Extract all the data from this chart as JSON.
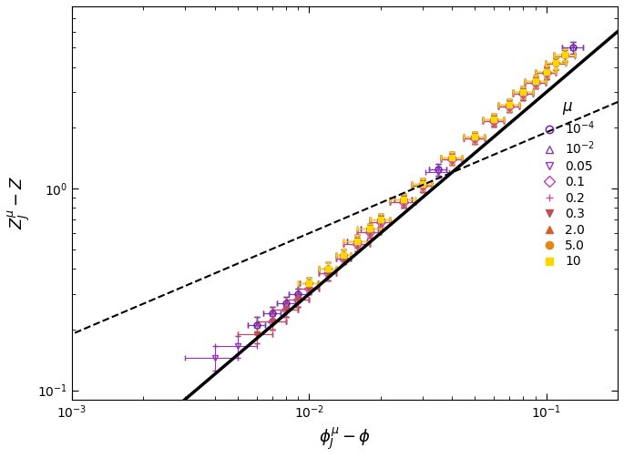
{
  "xlabel": "$\\phi_J^{\\mu} - \\phi$",
  "ylabel": "$Z_J^{\\mu} - Z$",
  "xlim": [
    0.001,
    0.2
  ],
  "ylim": [
    0.09,
    8.0
  ],
  "solid_line_x": [
    0.0008,
    0.2
  ],
  "solid_line_slope": 1.0,
  "solid_line_A": 30.0,
  "solid_line_lw": 2.5,
  "dashed_line_slope": 0.5,
  "dashed_line_A": 6.0,
  "dashed_line_lw": 1.5,
  "series": [
    {
      "label": "$10^{-4}$",
      "color": "#6A0DAD",
      "marker": "o",
      "filled": false,
      "x": [
        0.006,
        0.007,
        0.008,
        0.009,
        0.01,
        0.012,
        0.014,
        0.016,
        0.018,
        0.02,
        0.025,
        0.03,
        0.035,
        0.04,
        0.05,
        0.06,
        0.07,
        0.08,
        0.09,
        0.1,
        0.11,
        0.12,
        0.13
      ],
      "y": [
        0.21,
        0.24,
        0.27,
        0.3,
        0.34,
        0.4,
        0.47,
        0.55,
        0.63,
        0.7,
        0.88,
        1.05,
        1.24,
        1.42,
        1.8,
        2.2,
        2.6,
        3.0,
        3.4,
        3.8,
        4.2,
        4.6,
        5.0
      ],
      "xerr": [
        0.0005,
        0.0006,
        0.0007,
        0.0008,
        0.0009,
        0.001,
        0.001,
        0.0015,
        0.0015,
        0.002,
        0.002,
        0.003,
        0.003,
        0.004,
        0.005,
        0.006,
        0.007,
        0.008,
        0.009,
        0.01,
        0.011,
        0.012,
        0.013
      ],
      "yerr": [
        0.02,
        0.02,
        0.02,
        0.02,
        0.02,
        0.03,
        0.03,
        0.04,
        0.04,
        0.05,
        0.06,
        0.07,
        0.08,
        0.09,
        0.11,
        0.14,
        0.17,
        0.2,
        0.22,
        0.25,
        0.28,
        0.31,
        0.34
      ]
    },
    {
      "label": "$10^{-2}$",
      "color": "#7B3DAE",
      "marker": "^",
      "filled": false,
      "x": [
        0.006,
        0.007,
        0.008,
        0.009,
        0.01,
        0.012,
        0.014,
        0.016,
        0.018,
        0.02,
        0.025,
        0.03,
        0.035,
        0.04,
        0.05,
        0.06,
        0.07,
        0.08,
        0.09,
        0.1,
        0.11,
        0.12,
        0.13
      ],
      "y": [
        0.21,
        0.24,
        0.27,
        0.3,
        0.34,
        0.4,
        0.47,
        0.55,
        0.63,
        0.7,
        0.88,
        1.05,
        1.24,
        1.42,
        1.8,
        2.2,
        2.6,
        3.0,
        3.4,
        3.8,
        4.2,
        4.6,
        5.0
      ],
      "xerr": [
        0.0005,
        0.0006,
        0.0007,
        0.0008,
        0.0009,
        0.001,
        0.001,
        0.0015,
        0.0015,
        0.002,
        0.002,
        0.003,
        0.003,
        0.004,
        0.005,
        0.006,
        0.007,
        0.008,
        0.009,
        0.01,
        0.011,
        0.012,
        0.013
      ],
      "yerr": [
        0.02,
        0.02,
        0.02,
        0.02,
        0.02,
        0.03,
        0.03,
        0.04,
        0.04,
        0.05,
        0.06,
        0.07,
        0.08,
        0.09,
        0.11,
        0.14,
        0.17,
        0.2,
        0.22,
        0.25,
        0.28,
        0.31,
        0.34
      ]
    },
    {
      "label": "0.05",
      "color": "#9B30C0",
      "marker": "v",
      "filled": false,
      "x": [
        0.004,
        0.005,
        0.006,
        0.007,
        0.008,
        0.009,
        0.01,
        0.012,
        0.014,
        0.016,
        0.018,
        0.02,
        0.025,
        0.03,
        0.035,
        0.04,
        0.05,
        0.06,
        0.07,
        0.08,
        0.09,
        0.1
      ],
      "y": [
        0.145,
        0.165,
        0.19,
        0.22,
        0.25,
        0.28,
        0.32,
        0.38,
        0.45,
        0.53,
        0.61,
        0.68,
        0.86,
        1.03,
        1.21,
        1.4,
        1.77,
        2.16,
        2.56,
        2.95,
        3.35,
        3.74
      ],
      "xerr": [
        0.001,
        0.001,
        0.001,
        0.001,
        0.001,
        0.001,
        0.001,
        0.001,
        0.001,
        0.002,
        0.002,
        0.002,
        0.003,
        0.003,
        0.004,
        0.004,
        0.005,
        0.006,
        0.007,
        0.008,
        0.009,
        0.01
      ],
      "yerr": [
        0.02,
        0.02,
        0.02,
        0.02,
        0.02,
        0.02,
        0.02,
        0.03,
        0.03,
        0.04,
        0.04,
        0.05,
        0.06,
        0.07,
        0.08,
        0.09,
        0.11,
        0.14,
        0.17,
        0.2,
        0.22,
        0.25
      ]
    },
    {
      "label": "0.1",
      "color": "#C040B8",
      "marker": "D",
      "filled": false,
      "x": [
        0.007,
        0.008,
        0.009,
        0.01,
        0.012,
        0.014,
        0.016,
        0.018,
        0.02,
        0.025,
        0.03,
        0.04,
        0.05,
        0.06,
        0.07,
        0.08,
        0.09,
        0.1
      ],
      "y": [
        0.22,
        0.25,
        0.28,
        0.32,
        0.38,
        0.45,
        0.53,
        0.61,
        0.68,
        0.86,
        1.03,
        1.4,
        1.77,
        2.16,
        2.56,
        2.95,
        3.35,
        3.74
      ],
      "xerr": [
        0.001,
        0.001,
        0.001,
        0.001,
        0.001,
        0.001,
        0.002,
        0.002,
        0.002,
        0.003,
        0.003,
        0.004,
        0.005,
        0.006,
        0.007,
        0.008,
        0.009,
        0.01
      ],
      "yerr": [
        0.02,
        0.02,
        0.02,
        0.02,
        0.03,
        0.03,
        0.04,
        0.04,
        0.05,
        0.06,
        0.07,
        0.09,
        0.11,
        0.14,
        0.17,
        0.2,
        0.22,
        0.25
      ]
    },
    {
      "label": "0.2",
      "color": "#D05090",
      "marker": "+",
      "filled": false,
      "x": [
        0.007,
        0.008,
        0.009,
        0.01,
        0.012,
        0.014,
        0.016,
        0.018,
        0.02,
        0.025,
        0.03,
        0.04,
        0.05,
        0.06,
        0.07,
        0.08,
        0.09,
        0.1
      ],
      "y": [
        0.22,
        0.25,
        0.28,
        0.32,
        0.38,
        0.45,
        0.53,
        0.61,
        0.68,
        0.86,
        1.03,
        1.4,
        1.77,
        2.16,
        2.56,
        2.95,
        3.35,
        3.74
      ],
      "xerr": [
        0.001,
        0.001,
        0.001,
        0.001,
        0.001,
        0.001,
        0.002,
        0.002,
        0.002,
        0.003,
        0.003,
        0.004,
        0.005,
        0.006,
        0.007,
        0.008,
        0.009,
        0.01
      ],
      "yerr": [
        0.02,
        0.02,
        0.02,
        0.02,
        0.03,
        0.03,
        0.04,
        0.04,
        0.05,
        0.06,
        0.07,
        0.09,
        0.11,
        0.14,
        0.17,
        0.2,
        0.22,
        0.25
      ]
    },
    {
      "label": "0.3",
      "color": "#C05050",
      "marker": "v",
      "filled": true,
      "x": [
        0.006,
        0.007,
        0.008,
        0.009,
        0.01,
        0.012,
        0.014,
        0.016,
        0.018,
        0.02,
        0.025,
        0.03,
        0.04,
        0.05,
        0.06,
        0.07,
        0.08,
        0.09,
        0.1,
        0.11,
        0.12
      ],
      "y": [
        0.19,
        0.22,
        0.25,
        0.28,
        0.32,
        0.38,
        0.45,
        0.53,
        0.61,
        0.68,
        0.86,
        1.03,
        1.4,
        1.77,
        2.16,
        2.56,
        2.95,
        3.35,
        3.74,
        4.14,
        4.53
      ],
      "xerr": [
        0.001,
        0.001,
        0.001,
        0.001,
        0.001,
        0.001,
        0.001,
        0.002,
        0.002,
        0.002,
        0.003,
        0.003,
        0.004,
        0.005,
        0.006,
        0.007,
        0.008,
        0.009,
        0.01,
        0.011,
        0.012
      ],
      "yerr": [
        0.02,
        0.02,
        0.02,
        0.02,
        0.02,
        0.03,
        0.03,
        0.04,
        0.04,
        0.05,
        0.06,
        0.07,
        0.09,
        0.11,
        0.14,
        0.17,
        0.2,
        0.22,
        0.25,
        0.28,
        0.3
      ]
    },
    {
      "label": "2.0",
      "color": "#D06030",
      "marker": "^",
      "filled": true,
      "x": [
        0.01,
        0.012,
        0.014,
        0.016,
        0.018,
        0.02,
        0.025,
        0.03,
        0.04,
        0.05,
        0.06,
        0.07,
        0.08,
        0.09,
        0.1,
        0.11,
        0.12
      ],
      "y": [
        0.34,
        0.4,
        0.47,
        0.55,
        0.63,
        0.7,
        0.88,
        1.05,
        1.42,
        1.8,
        2.2,
        2.6,
        3.0,
        3.4,
        3.8,
        4.2,
        4.6
      ],
      "xerr": [
        0.001,
        0.001,
        0.001,
        0.002,
        0.002,
        0.002,
        0.003,
        0.003,
        0.004,
        0.005,
        0.006,
        0.007,
        0.008,
        0.009,
        0.01,
        0.011,
        0.012
      ],
      "yerr": [
        0.02,
        0.03,
        0.03,
        0.04,
        0.04,
        0.05,
        0.06,
        0.07,
        0.09,
        0.11,
        0.14,
        0.17,
        0.2,
        0.22,
        0.25,
        0.28,
        0.31
      ]
    },
    {
      "label": "5.0",
      "color": "#E08818",
      "marker": "o",
      "filled": true,
      "x": [
        0.01,
        0.012,
        0.014,
        0.016,
        0.018,
        0.02,
        0.025,
        0.03,
        0.04,
        0.05,
        0.06,
        0.07,
        0.08,
        0.09,
        0.1,
        0.11,
        0.12
      ],
      "y": [
        0.34,
        0.4,
        0.47,
        0.55,
        0.63,
        0.7,
        0.88,
        1.05,
        1.42,
        1.8,
        2.2,
        2.6,
        3.0,
        3.4,
        3.8,
        4.2,
        4.6
      ],
      "xerr": [
        0.001,
        0.001,
        0.001,
        0.002,
        0.002,
        0.002,
        0.003,
        0.003,
        0.004,
        0.005,
        0.006,
        0.007,
        0.008,
        0.009,
        0.01,
        0.011,
        0.012
      ],
      "yerr": [
        0.02,
        0.03,
        0.03,
        0.04,
        0.04,
        0.05,
        0.06,
        0.07,
        0.09,
        0.11,
        0.14,
        0.17,
        0.2,
        0.22,
        0.25,
        0.28,
        0.31
      ]
    },
    {
      "label": "10",
      "color": "#FFD700",
      "marker": "s",
      "filled": true,
      "x": [
        0.01,
        0.012,
        0.014,
        0.016,
        0.018,
        0.02,
        0.025,
        0.03,
        0.04,
        0.05,
        0.06,
        0.07,
        0.08,
        0.09,
        0.1,
        0.11,
        0.12
      ],
      "y": [
        0.34,
        0.4,
        0.47,
        0.55,
        0.63,
        0.7,
        0.88,
        1.05,
        1.42,
        1.8,
        2.2,
        2.6,
        3.0,
        3.4,
        3.8,
        4.2,
        4.6
      ],
      "xerr": [
        0.001,
        0.001,
        0.001,
        0.002,
        0.002,
        0.002,
        0.003,
        0.003,
        0.004,
        0.005,
        0.006,
        0.007,
        0.008,
        0.009,
        0.01,
        0.011,
        0.012
      ],
      "yerr": [
        0.02,
        0.03,
        0.03,
        0.04,
        0.04,
        0.05,
        0.06,
        0.07,
        0.09,
        0.11,
        0.14,
        0.17,
        0.2,
        0.22,
        0.25,
        0.28,
        0.31
      ]
    }
  ],
  "legend_entries": [
    {
      "label": "$10^{-4}$",
      "color": "#6A0DAD",
      "marker": "o",
      "filled": false
    },
    {
      "label": "$10^{-2}$",
      "color": "#7B3DAE",
      "marker": "^",
      "filled": false
    },
    {
      "label": "0.05",
      "color": "#9B30C0",
      "marker": "v",
      "filled": false
    },
    {
      "label": "0.1",
      "color": "#C040B8",
      "marker": "D",
      "filled": false
    },
    {
      "label": "0.2",
      "color": "#D05090",
      "marker": "+",
      "filled": false
    },
    {
      "label": "0.3",
      "color": "#C05050",
      "marker": "v",
      "filled": true
    },
    {
      "label": "2.0",
      "color": "#D06030",
      "marker": "^",
      "filled": true
    },
    {
      "label": "5.0",
      "color": "#E08818",
      "marker": "o",
      "filled": true
    },
    {
      "label": "10",
      "color": "#FFD700",
      "marker": "s",
      "filled": true
    }
  ],
  "legend_title": "$\\mu$",
  "legend_loc": "center right"
}
